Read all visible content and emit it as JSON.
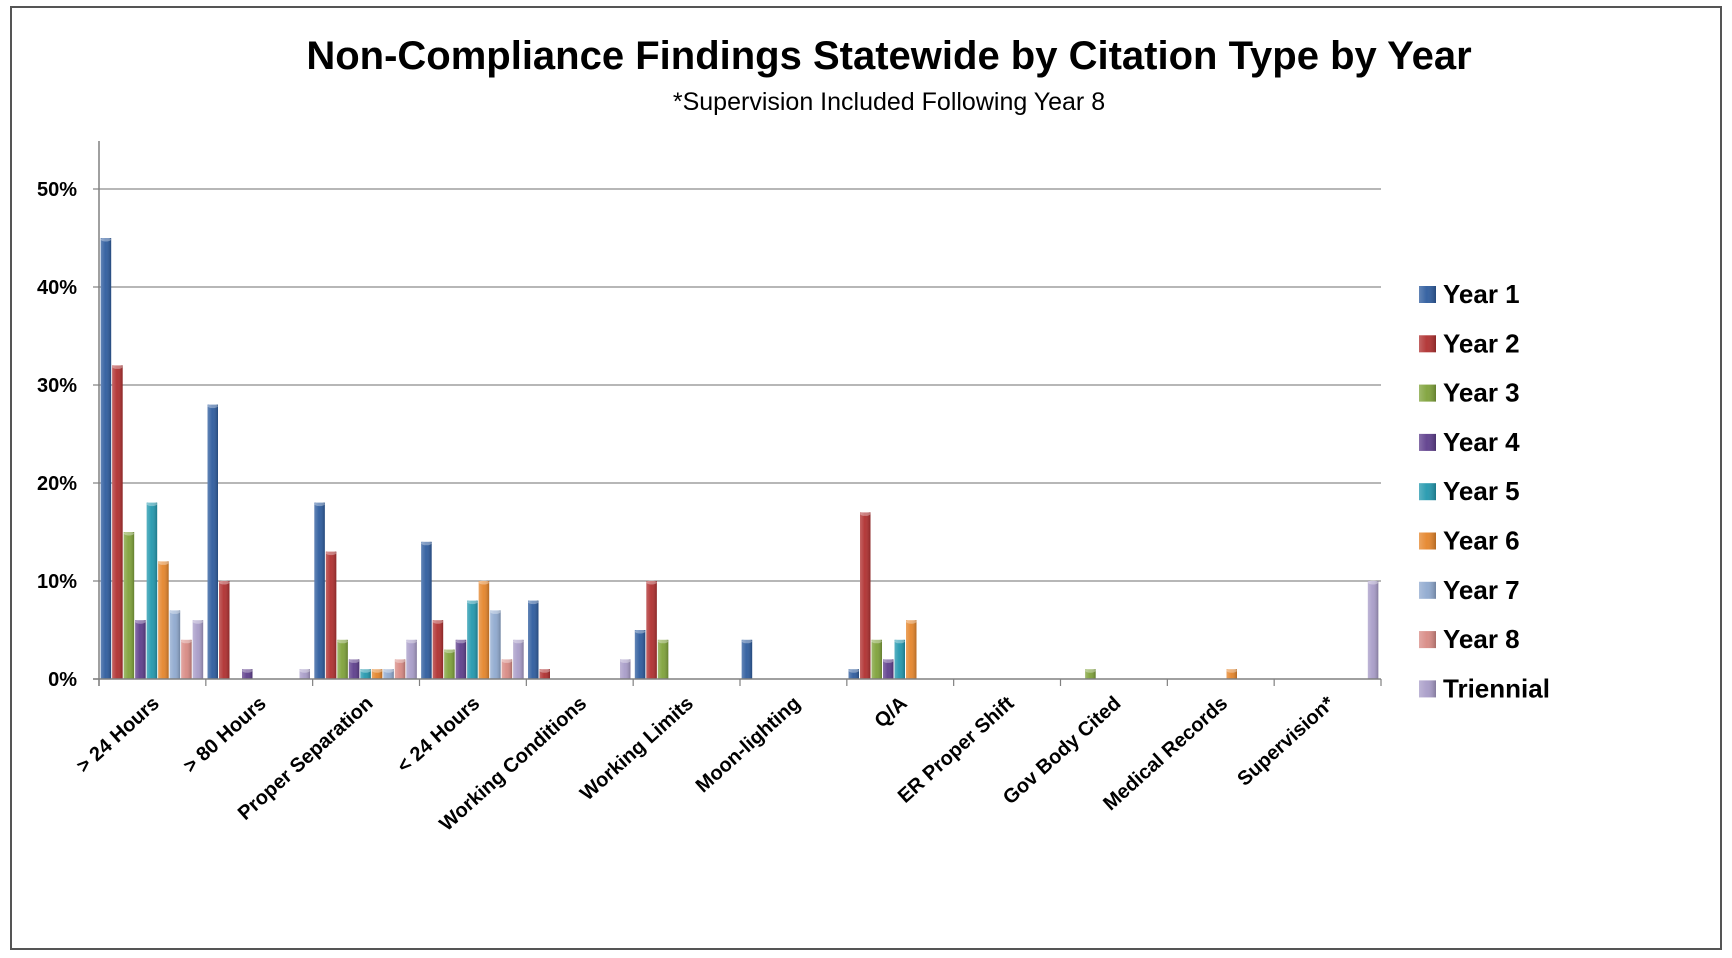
{
  "chart_data": {
    "type": "bar",
    "title": "Non-Compliance Findings Statewide by Citation Type by Year",
    "subtitle": "*Supervision Included Following Year 8",
    "xlabel": "",
    "ylabel": "",
    "ylim": [
      0,
      55
    ],
    "y_ticks": [
      "0%",
      "10%",
      "20%",
      "30%",
      "40%",
      "50%"
    ],
    "y_tick_values": [
      0,
      10,
      20,
      30,
      40,
      50
    ],
    "grid": true,
    "legend_position": "right",
    "categories": [
      "> 24 Hours",
      "> 80 Hours",
      "Proper Separation",
      "< 24 Hours",
      "Working Conditions",
      "Working Limits",
      "Moon-lighting",
      "Q/A",
      "ER Proper Shift",
      "Gov Body Cited",
      "Medical Records",
      "Supervision*"
    ],
    "series": [
      {
        "name": "Year 1",
        "color": "#2E5C9E",
        "values": [
          45,
          28,
          18,
          14,
          8,
          5,
          4,
          1,
          0,
          0,
          0,
          0
        ]
      },
      {
        "name": "Year 2",
        "color": "#B03030",
        "values": [
          32,
          10,
          13,
          6,
          1,
          10,
          0,
          17,
          0,
          0,
          0,
          0
        ]
      },
      {
        "name": "Year 3",
        "color": "#7FA23A",
        "values": [
          15,
          0,
          4,
          3,
          0,
          4,
          0,
          4,
          0,
          1,
          0,
          0
        ]
      },
      {
        "name": "Year 4",
        "color": "#5E3E8C",
        "values": [
          6,
          1,
          2,
          4,
          0,
          0,
          0,
          2,
          0,
          0,
          0,
          0
        ]
      },
      {
        "name": "Year 5",
        "color": "#2398AE",
        "values": [
          18,
          0,
          1,
          8,
          0,
          0,
          0,
          4,
          0,
          0,
          0,
          0
        ]
      },
      {
        "name": "Year 6",
        "color": "#E5852B",
        "values": [
          12,
          0,
          1,
          10,
          0,
          0,
          0,
          6,
          0,
          0,
          1,
          0
        ]
      },
      {
        "name": "Year 7",
        "color": "#8FA9CF",
        "values": [
          7,
          0,
          1,
          7,
          0,
          0,
          0,
          0,
          0,
          0,
          0,
          0
        ]
      },
      {
        "name": "Year 8",
        "color": "#D88A84",
        "values": [
          4,
          0,
          2,
          2,
          0,
          0,
          0,
          0,
          0,
          0,
          0,
          0
        ]
      },
      {
        "name": "Triennial",
        "color": "#A89CC8",
        "values": [
          6,
          1,
          4,
          4,
          2,
          0,
          0,
          0,
          0,
          0,
          0,
          10
        ]
      }
    ]
  }
}
